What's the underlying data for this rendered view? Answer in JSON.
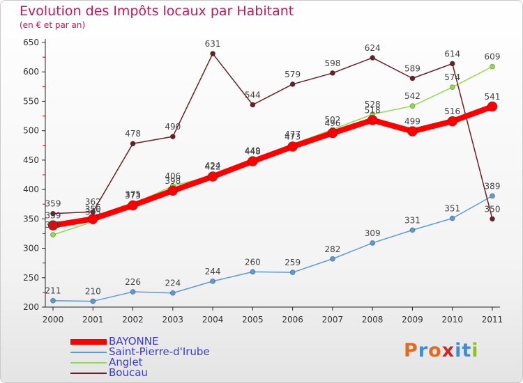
{
  "title": "Evolution des Impôts locaux par Habitant",
  "subtitle": "(en € et par an)",
  "brand": "Proxiti",
  "brand_colors": [
    "#e36a1f",
    "#3a8fd6",
    "#e36a1f",
    "#cc2a2a",
    "#3a8fd6",
    "#3a8fd6",
    "#8cbf26"
  ],
  "chart_data": {
    "type": "line",
    "title": "Evolution des Impôts locaux par Habitant",
    "subtitle": "(en € et par an)",
    "x": [
      "2000",
      "2001",
      "2002",
      "2003",
      "2004",
      "2005",
      "2006",
      "2007",
      "2008",
      "2009",
      "2010",
      "2011"
    ],
    "ylim": [
      200,
      650
    ],
    "yticks": [
      200,
      250,
      300,
      350,
      400,
      450,
      500,
      550,
      600,
      650
    ],
    "grid": false,
    "legend_position": "bottom-left",
    "series": [
      {
        "name": "BAYONNE",
        "color": "#ff0000",
        "values": [
          339,
          350,
          373,
          398,
          422,
          448,
          473,
          496,
          518,
          499,
          516,
          541
        ],
        "labels": [
          "339",
          "350",
          "373",
          "398",
          "422",
          "448",
          "473",
          "496",
          "518",
          "499",
          "516",
          "541"
        ]
      },
      {
        "name": "Saint-Pierre-d'Irube",
        "color": "#5b9bd5",
        "values": [
          211,
          210,
          226,
          224,
          244,
          260,
          259,
          282,
          309,
          331,
          351,
          389
        ],
        "labels": [
          "211",
          "210",
          "226",
          "224",
          "244",
          "260",
          "259",
          "282",
          "309",
          "331",
          "351",
          "389"
        ]
      },
      {
        "name": "Anglet",
        "color": "#8fdb4c",
        "values": [
          323,
          345,
          375,
          406,
          424,
          449,
          477,
          502,
          528,
          542,
          574,
          609
        ],
        "labels": [
          "323",
          "345",
          "375",
          "406",
          "424",
          "449",
          "477",
          "502",
          "528",
          "542",
          "574",
          "609"
        ]
      },
      {
        "name": "Boucau",
        "color": "#6b1e24",
        "values": [
          359,
          362,
          478,
          490,
          631,
          544,
          579,
          598,
          624,
          589,
          614,
          350
        ],
        "labels": [
          "359",
          "362",
          "478",
          "490",
          "631",
          "544",
          "579",
          "598",
          "624",
          "589",
          "614",
          "350"
        ]
      }
    ]
  }
}
